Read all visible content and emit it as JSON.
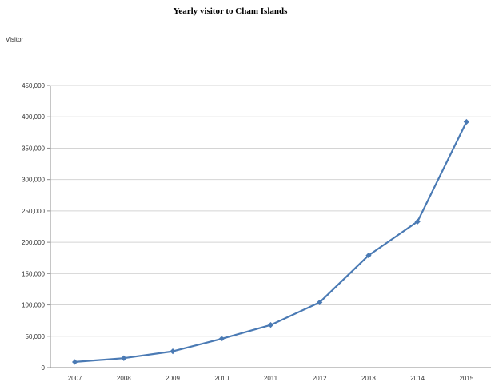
{
  "chart_data": {
    "type": "line",
    "title": "Yearly visitor to Cham Islands",
    "xlabel": "",
    "ylabel": "Visitor",
    "categories": [
      "2007",
      "2008",
      "2009",
      "2010",
      "2011",
      "2012",
      "2013",
      "2014",
      "2015"
    ],
    "series": [
      {
        "values": [
          9000,
          15000,
          26000,
          46000,
          68000,
          104000,
          179000,
          233000,
          392000
        ]
      }
    ],
    "ylim": [
      0,
      450000
    ],
    "yticks": [
      0,
      50000,
      100000,
      150000,
      200000,
      250000,
      300000,
      350000,
      400000,
      450000
    ],
    "ytick_labels": [
      "0",
      "50,000",
      "100,000",
      "150,000",
      "200,000",
      "250,000",
      "300,000",
      "350,000",
      "400,000",
      "450,000"
    ],
    "grid": "horizontal",
    "legend": "none",
    "colors": {
      "series": "#4a7ab4",
      "grid": "#d4d4d4",
      "axis": "#8c8c8c"
    }
  }
}
